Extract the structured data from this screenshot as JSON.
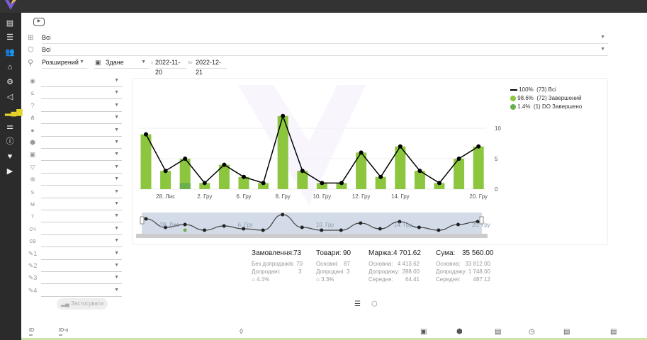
{
  "filters": {
    "group": "Всі",
    "product": "Всі",
    "search_mode": "Розширений",
    "date_type": "Здане",
    "from_label": "з",
    "date_from": "2022-11-20",
    "to_label": "по",
    "date_to": "2022-12-21"
  },
  "apply_label": "Застосувати",
  "left_filter_icons": [
    "globe-icon",
    "list-edit-icon",
    "question-icon",
    "hierarchy-icon",
    "fingerprint-icon",
    "box-icon",
    "money-icon",
    "funnel-icon",
    "web-icon",
    "s",
    "м",
    "т",
    "сч",
    "св",
    "pen-1",
    "pen-2",
    "pen-3",
    "pen-4"
  ],
  "legend": [
    {
      "pct": "100%",
      "count": "(73)",
      "label": "Всі",
      "color": "#000000"
    },
    {
      "pct": "98.6%",
      "count": "(72)",
      "label": "Завершений",
      "color": "#8cc63f"
    },
    {
      "pct": "1.4%",
      "count": "(1)",
      "label": "DO Завершено",
      "color": "#6ab04c"
    }
  ],
  "chart_data": {
    "type": "bar",
    "x_tick_labels": [
      "28. Лис",
      "2. Гру",
      "6. Гру",
      "8. Гру",
      "10. Гру",
      "12. Гру",
      "14. Гру",
      "20. Гру"
    ],
    "x_tick_index": [
      1,
      3,
      5,
      7,
      9,
      11,
      13,
      17
    ],
    "series": [
      {
        "name": "Завершений",
        "values": [
          9,
          3,
          4,
          1,
          4,
          2,
          1,
          12,
          3,
          1,
          1,
          6,
          2,
          7,
          3,
          1,
          5,
          7
        ],
        "color": "#8cc63f"
      },
      {
        "name": "DO Завершено",
        "values": [
          0,
          0,
          1,
          0,
          0,
          0,
          0,
          0,
          0,
          0,
          0,
          0,
          0,
          0,
          0,
          0,
          0,
          0
        ],
        "color": "#6ab04c"
      },
      {
        "name": "Всі",
        "type": "line",
        "values": [
          9,
          3,
          5,
          1,
          4,
          2,
          1,
          12,
          3,
          1,
          1,
          6,
          2,
          7,
          3,
          1,
          5,
          7
        ],
        "color": "#000000"
      }
    ],
    "y_ticks": [
      "0",
      "5",
      "10"
    ],
    "ylim": [
      0,
      12
    ],
    "grid": true,
    "legend_position": "top-right",
    "navigator_labels": [
      "28. Лис",
      "6. Гру",
      "10. Гру",
      "14. Гру",
      "20. Гру"
    ]
  },
  "stats": {
    "orders": {
      "label": "Замовлення:",
      "value": "73",
      "rows": [
        [
          "Без допродажів:",
          "70"
        ],
        [
          "Допродані:",
          "3"
        ]
      ],
      "pct": "4.1%"
    },
    "goods": {
      "label": "Товари:",
      "value": "90",
      "rows": [
        [
          "Основні:",
          "87"
        ],
        [
          "Допродані:",
          "3"
        ]
      ],
      "pct": "3.3%"
    },
    "margin": {
      "label": "Маржа:",
      "value": "4 701.62",
      "rows": [
        [
          "Основна:",
          "4 413.62"
        ],
        [
          "Допродажу:",
          "288.00"
        ],
        [
          "Середня:",
          "64.41"
        ]
      ]
    },
    "sum": {
      "label": "Сума:",
      "value": "35 560.00",
      "rows": [
        [
          "Основна:",
          "33 812.00"
        ],
        [
          "Допродажу:",
          "1 748.00"
        ],
        [
          "Середня:",
          "487.12"
        ]
      ]
    }
  },
  "bottom": {
    "id1": "ID",
    "id2": "ID-o"
  }
}
